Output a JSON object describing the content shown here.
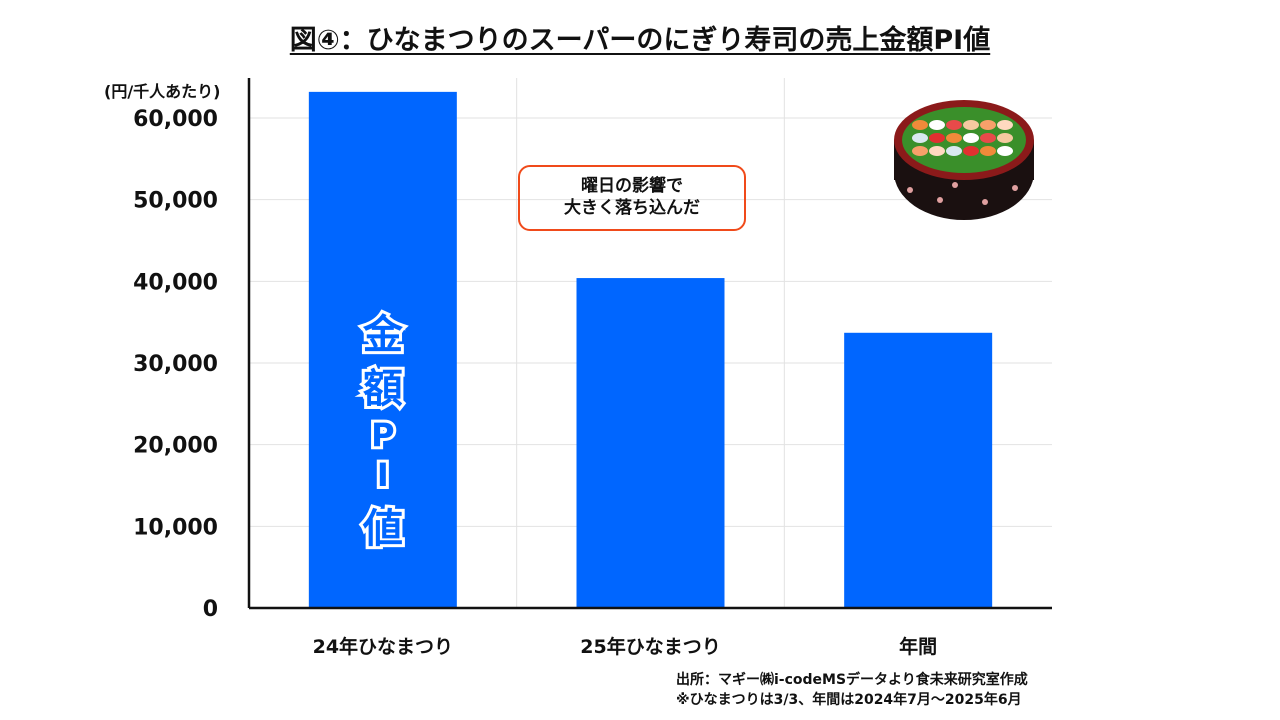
{
  "chart_data": {
    "type": "bar",
    "title": "図④：ひなまつりのスーパーのにぎり寿司の売上金額PI値",
    "ylabel": "(円/千人あたり)",
    "xlabel": "",
    "categories": [
      "24年ひなまつり",
      "25年ひなまつり",
      "年間"
    ],
    "values": [
      63200,
      40400,
      33700
    ],
    "ylim": [
      0,
      60000
    ],
    "yticks": [
      0,
      10000,
      20000,
      30000,
      40000,
      50000,
      60000
    ],
    "ytick_labels": [
      "0",
      "10,000",
      "20,000",
      "30,000",
      "40,000",
      "50,000",
      "60,000"
    ],
    "grid": true,
    "bar_color": "#0066FF",
    "bar_annotation": "金額PI値",
    "callout": [
      "曜日の影響で",
      "大きく落ち込んだ"
    ]
  },
  "source": {
    "line1": "出所：マギー㈱i-codeMSデータより食未来研究室作成",
    "line2": "※ひなまつりは3/3、年間は2024年7月～2025年6月"
  }
}
